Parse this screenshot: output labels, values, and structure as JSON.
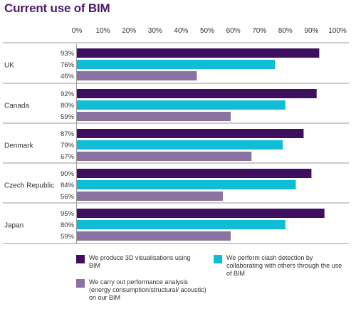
{
  "chart_data": {
    "type": "bar",
    "orientation": "horizontal",
    "title": "Current use of BIM",
    "categories": [
      "UK",
      "Canada",
      "Denmark",
      "Czech Republic",
      "Japan"
    ],
    "x_ticks": [
      "0%",
      "10%",
      "20%",
      "30%",
      "40%",
      "50%",
      "60%",
      "70%",
      "80%",
      "90%",
      "100%"
    ],
    "xlim": [
      0,
      100
    ],
    "grid": false,
    "legend_position": "bottom",
    "series": [
      {
        "name": "We produce 3D visualisations using BIM",
        "color": "#3d0f5e",
        "values": [
          93,
          92,
          87,
          90,
          95
        ],
        "labels": [
          "93%",
          "92%",
          "87%",
          "90%",
          "95%"
        ]
      },
      {
        "name": "We perform clash detection by collaborating with others through the use of BIM",
        "color": "#0fbdd6",
        "values": [
          76,
          80,
          79,
          84,
          80
        ],
        "labels": [
          "76%",
          "80%",
          "79%",
          "84%",
          "80%"
        ]
      },
      {
        "name": "We carry out performance analysis (energy consumption/structural/ acoustic) on our BIM",
        "color": "#8a73a0",
        "values": [
          46,
          59,
          67,
          56,
          59
        ],
        "labels": [
          "46%",
          "59%",
          "67%",
          "56%",
          "59%"
        ]
      }
    ]
  }
}
